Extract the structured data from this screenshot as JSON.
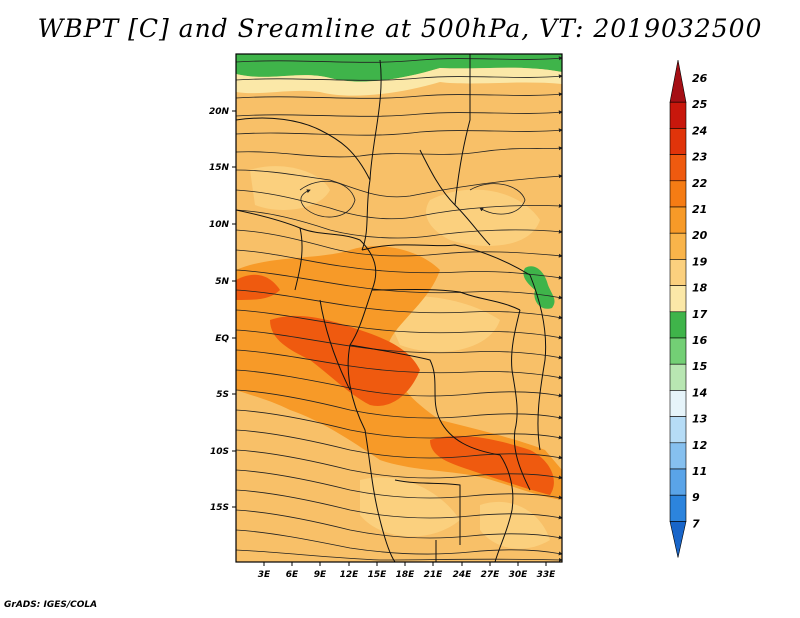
{
  "title": "WBPT [C] and Sreamline at 500hPa, VT: 2019032500",
  "credit": "GrADS: IGES/COLA",
  "map": {
    "lat_labels": [
      "20N",
      "15N",
      "10N",
      "5N",
      "EQ",
      "5S",
      "10S",
      "15S"
    ],
    "lon_labels": [
      "3E",
      "6E",
      "9E",
      "12E",
      "15E",
      "18E",
      "21E",
      "24E",
      "27E",
      "30E",
      "33E"
    ]
  },
  "colorbar": {
    "labels": [
      "26",
      "25",
      "24",
      "23",
      "22",
      "21",
      "20",
      "19",
      "18",
      "17",
      "16",
      "15",
      "14",
      "13",
      "12",
      "11",
      "9",
      "7"
    ],
    "colors": [
      "#a50f15",
      "#c8170c",
      "#e0340a",
      "#ef5a0f",
      "#f57c14",
      "#f79a28",
      "#f9b44a",
      "#fbd07e",
      "#fbe8a8",
      "#3fb44a",
      "#73cf75",
      "#b8e6b2",
      "#e6f4fa",
      "#b6dcf6",
      "#86c0ef",
      "#5aa4e8",
      "#2c84dd",
      "#1865c9"
    ]
  }
}
